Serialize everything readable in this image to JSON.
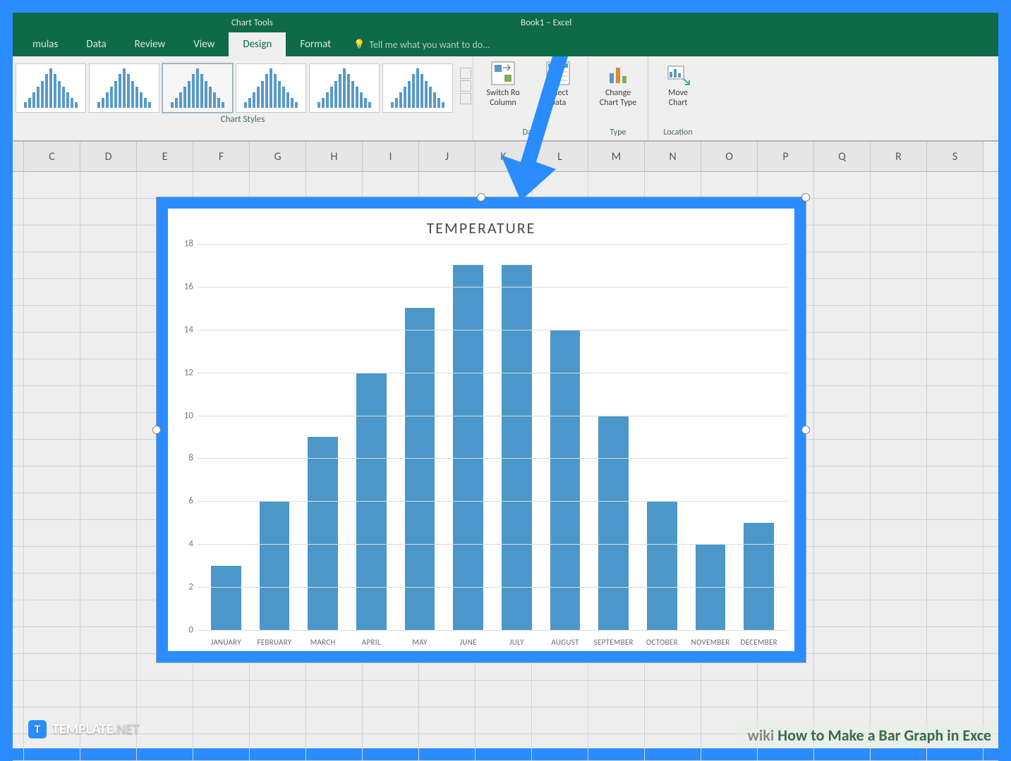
{
  "frame": {
    "border_color": "#2a8cff"
  },
  "titlebar": {
    "chart_tools": "Chart Tools",
    "book_title": "Book1 – Excel"
  },
  "tabs": {
    "items": [
      "mulas",
      "Data",
      "Review",
      "View",
      "Design",
      "Format"
    ],
    "active_index": 4,
    "tell_me": "Tell me what you want to do..."
  },
  "ribbon": {
    "chart_styles_label": "Chart Styles",
    "style_thumb_heights": [
      [
        8,
        14,
        22,
        30,
        38,
        48,
        56,
        48,
        38,
        30,
        22,
        14,
        8
      ],
      [
        8,
        14,
        22,
        30,
        38,
        48,
        56,
        48,
        38,
        30,
        22,
        14,
        8
      ],
      [
        8,
        14,
        22,
        30,
        38,
        48,
        56,
        48,
        38,
        30,
        22,
        14,
        8
      ],
      [
        8,
        14,
        22,
        30,
        38,
        48,
        56,
        48,
        38,
        30,
        22,
        14,
        8
      ],
      [
        8,
        14,
        22,
        30,
        38,
        48,
        56,
        48,
        38,
        30,
        22,
        14,
        8
      ],
      [
        8,
        14,
        22,
        30,
        38,
        48,
        56,
        48,
        38,
        30,
        22,
        14,
        8
      ]
    ],
    "selected_style_index": 2,
    "data_group": {
      "switch": {
        "line1": "Switch Ro",
        "line2": "Column"
      },
      "select": {
        "line1": "Select",
        "line2": "Data"
      },
      "label": "Data"
    },
    "type_group": {
      "change": {
        "line1": "Change",
        "line2": "Chart Type"
      },
      "label": "Type"
    },
    "location_group": {
      "move": {
        "line1": "Move",
        "line2": "Chart"
      },
      "label": "Location"
    }
  },
  "columns": [
    "C",
    "D",
    "E",
    "F",
    "G",
    "H",
    "I",
    "J",
    "K",
    "L",
    "M",
    "N",
    "O",
    "P",
    "Q",
    "R",
    "S"
  ],
  "grid": {
    "row_count": 22
  },
  "chart": {
    "type": "bar",
    "title": "TEMPERATURE",
    "title_fontsize": 22,
    "title_color": "#4a4a4a",
    "categories": [
      "JANUARY",
      "FEBRUARY",
      "MARCH",
      "APRIL",
      "MAY",
      "JUNE",
      "JULY",
      "AUGUST",
      "SEPTEMBER",
      "OCTOBER",
      "NOVEMBER",
      "DECEMBER"
    ],
    "values": [
      3,
      6,
      9,
      12,
      15,
      17,
      17,
      14,
      10,
      6,
      4,
      5
    ],
    "bar_color": "#4c97c9",
    "ylim": [
      0,
      18
    ],
    "ytick_step": 2,
    "yticks": [
      0,
      2,
      4,
      6,
      8,
      10,
      12,
      14,
      16,
      18
    ],
    "grid_color": "#dcdcdc",
    "background_color": "#ffffff",
    "label_fontsize": 11,
    "label_color": "#6a6a6a",
    "tick_fontsize": 13,
    "tick_color": "#777777",
    "bar_width": 0.62
  },
  "arrow": {
    "color": "#2a8cff"
  },
  "watermark": {
    "icon_letter": "T",
    "brand": "TEMPLATE",
    "suffix": ".NET"
  },
  "wiki": {
    "text": "How to Make a Bar Graph in Exce"
  }
}
